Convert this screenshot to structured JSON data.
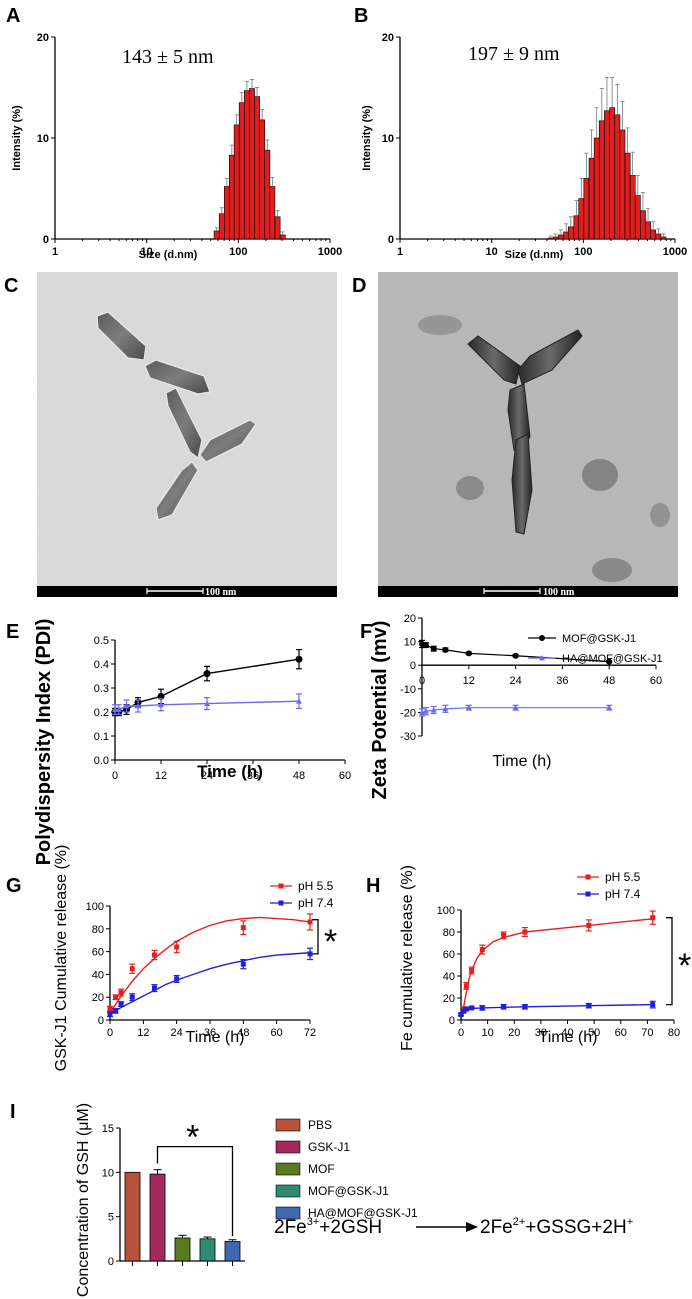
{
  "panels": {
    "A": "A",
    "B": "B",
    "C": "C",
    "D": "D",
    "E": "E",
    "F": "F",
    "G": "G",
    "H": "H",
    "I": "I"
  },
  "dls_axis": {
    "xlabel": "Size (d.nm)",
    "ylabel": "Intensity (%)"
  },
  "tem": {
    "scale_label": "100 nm"
  },
  "equation": {
    "lhs": "2Fe",
    "lhs_sup": "3+",
    "mid": "+2GSH",
    "rhs": "2Fe",
    "rhs_sup": "2+",
    "tail": "+GSSG+2H",
    "tail_sup": "+"
  },
  "colors": {
    "bar_red": "#dd1f1f",
    "black": "#000000",
    "blue": "#1f1fe0",
    "lightblue": "#6b6bf0",
    "pbs": "#b8523a",
    "gsk": "#a3285c",
    "mof": "#5a7a22",
    "mofgsk": "#2e8a70",
    "hamof": "#3f68b0"
  },
  "chart_data": [
    {
      "id": "A",
      "type": "bar",
      "title": "143 ± 5 nm",
      "xlabel": "Size (d.nm)",
      "ylabel": "Intensity (%)",
      "xscale": "log",
      "xlim": [
        1,
        1000
      ],
      "ylim": [
        0,
        20
      ],
      "xticks": [
        "1",
        "10",
        "100",
        "1000"
      ],
      "yticks": [
        "0",
        "10",
        "20"
      ],
      "x": [
        58,
        66,
        75,
        85,
        96,
        109,
        124,
        141,
        160,
        182,
        207,
        235,
        268,
        305
      ],
      "values": [
        0.8,
        2.5,
        5.2,
        8.3,
        11.3,
        13.5,
        14.7,
        14.9,
        14.1,
        11.8,
        8.8,
        5.2,
        2.2,
        0.4
      ],
      "errors": [
        0.3,
        0.6,
        0.8,
        1.0,
        1.0,
        1.0,
        0.9,
        0.9,
        0.9,
        1.0,
        1.0,
        0.9,
        0.6,
        0.3
      ]
    },
    {
      "id": "B",
      "type": "bar",
      "title": "197 ± 9 nm",
      "xlabel": "Size (d.nm)",
      "ylabel": "Intensity (%)",
      "xscale": "log",
      "xlim": [
        1,
        1000
      ],
      "ylim": [
        0,
        20
      ],
      "xticks": [
        "1",
        "10",
        "100",
        "1000"
      ],
      "yticks": [
        "0",
        "10",
        "20"
      ],
      "x": [
        44,
        50,
        57,
        65,
        73,
        84,
        95,
        108,
        123,
        140,
        159,
        181,
        206,
        235,
        267,
        304,
        345,
        393,
        447,
        508,
        578,
        658,
        749
      ],
      "values": [
        0.1,
        0.2,
        0.4,
        0.7,
        1.2,
        2.3,
        4.0,
        6.0,
        8.0,
        10.0,
        11.7,
        12.7,
        13.0,
        12.3,
        10.8,
        8.5,
        6.3,
        4.3,
        2.8,
        1.7,
        0.9,
        0.5,
        0.2
      ],
      "errors": [
        0.2,
        0.3,
        0.5,
        0.8,
        1.0,
        1.5,
        2.0,
        2.5,
        2.8,
        3.0,
        3.2,
        3.3,
        3.0,
        3.0,
        2.8,
        2.5,
        2.3,
        2.0,
        1.8,
        1.3,
        0.8,
        0.5,
        0.3
      ]
    },
    {
      "id": "E",
      "type": "line",
      "xlabel": "Time (h)",
      "ylabel": "Polydispersity Index (PDI)",
      "xlim": [
        0,
        60
      ],
      "ylim": [
        0,
        0.5
      ],
      "xticks": [
        "0",
        "12",
        "24",
        "36",
        "48",
        "60"
      ],
      "yticks": [
        "0.0",
        "0.1",
        "0.2",
        "0.3",
        "0.4",
        "0.5"
      ],
      "series": [
        {
          "x": [
            0,
            1,
            3,
            6,
            12,
            24,
            48
          ],
          "values": [
            0.2,
            0.2,
            0.21,
            0.24,
            0.265,
            0.36,
            0.42
          ],
          "errors": [
            0.015,
            0.015,
            0.02,
            0.02,
            0.03,
            0.03,
            0.04
          ],
          "color": "#000000",
          "marker": "circle"
        },
        {
          "x": [
            0,
            1,
            3,
            6,
            12,
            24,
            48
          ],
          "values": [
            0.21,
            0.21,
            0.225,
            0.225,
            0.23,
            0.235,
            0.245
          ],
          "errors": [
            0.02,
            0.02,
            0.025,
            0.025,
            0.025,
            0.025,
            0.03
          ],
          "color": "#6b6bf0",
          "marker": "triangle"
        }
      ]
    },
    {
      "id": "F",
      "type": "line",
      "xlabel": "Time (h)",
      "ylabel": "Zeta Potential (mv)",
      "xlim": [
        0,
        60
      ],
      "ylim": [
        -30,
        20
      ],
      "xticks": [
        "0",
        "12",
        "24",
        "36",
        "48",
        "60"
      ],
      "yticks": [
        "-30",
        "-20",
        "-10",
        "0",
        "10",
        "20"
      ],
      "series": [
        {
          "name": "MOF@GSK-J1",
          "x": [
            0,
            1,
            3,
            6,
            12,
            24,
            48
          ],
          "values": [
            9,
            8.5,
            7,
            6.5,
            5,
            4,
            1.5
          ],
          "errors": [
            1.5,
            1,
            1,
            0.8,
            0.5,
            0.5,
            0.5
          ],
          "color": "#000000",
          "marker": "circle"
        },
        {
          "name": "HA@MOF@GSK-J1",
          "x": [
            0,
            1,
            3,
            6,
            12,
            24,
            48
          ],
          "values": [
            -20,
            -19.5,
            -19,
            -18.5,
            -18,
            -18,
            -18
          ],
          "errors": [
            1.5,
            1.5,
            1.5,
            1.5,
            1,
            1,
            1
          ],
          "color": "#6b6bf0",
          "marker": "triangle"
        }
      ]
    },
    {
      "id": "G",
      "type": "scatter",
      "xlabel": "Time (h)",
      "ylabel": "GSK-J1 Cumulative release (%)",
      "xlim": [
        0,
        72
      ],
      "ylim": [
        0,
        100
      ],
      "xticks": [
        "0",
        "12",
        "24",
        "36",
        "48",
        "60",
        "72"
      ],
      "yticks": [
        "0",
        "20",
        "40",
        "60",
        "80",
        "100"
      ],
      "annotation": "*",
      "series": [
        {
          "name": "pH 5.5",
          "x": [
            0,
            2,
            4,
            8,
            16,
            24,
            48,
            72
          ],
          "values": [
            10,
            20,
            24,
            45,
            57,
            64,
            81,
            86
          ],
          "errors": [
            2,
            2,
            3,
            4,
            4,
            5,
            6,
            7
          ],
          "color": "#e81e1e",
          "fit_x": [
            0,
            4,
            8,
            12,
            16,
            20,
            24,
            30,
            36,
            42,
            48,
            54,
            60,
            66,
            72
          ],
          "fit_y": [
            6,
            21,
            34,
            45,
            54,
            62,
            69,
            77,
            83,
            87,
            89,
            90,
            89,
            88,
            86
          ]
        },
        {
          "name": "pH 7.4",
          "x": [
            0,
            2,
            4,
            8,
            16,
            24,
            48,
            72
          ],
          "values": [
            5,
            8,
            14,
            20,
            28,
            36,
            49,
            58
          ],
          "errors": [
            2,
            2,
            2,
            3,
            3,
            3,
            4,
            5
          ],
          "color": "#1f1fe0",
          "fit_x": [
            0,
            4,
            8,
            12,
            16,
            20,
            24,
            30,
            36,
            42,
            48,
            54,
            60,
            66,
            72
          ],
          "fit_y": [
            5,
            11,
            16,
            21,
            26,
            31,
            35,
            40,
            45,
            49,
            52,
            55,
            57,
            58,
            59
          ]
        }
      ]
    },
    {
      "id": "H",
      "type": "scatter",
      "xlabel": "Time (h)",
      "ylabel": "Fe cumulative release (%)",
      "xlim": [
        0,
        80
      ],
      "ylim": [
        0,
        100
      ],
      "xticks": [
        "0",
        "10",
        "20",
        "30",
        "40",
        "50",
        "60",
        "70",
        "80"
      ],
      "yticks": [
        "0",
        "20",
        "40",
        "60",
        "80",
        "100"
      ],
      "annotation": "*",
      "series": [
        {
          "name": "pH 5.5",
          "x": [
            0,
            1,
            2,
            4,
            8,
            16,
            24,
            48,
            72
          ],
          "values": [
            5,
            10,
            31,
            45,
            64,
            77,
            80,
            86,
            93
          ],
          "errors": [
            1,
            2,
            3,
            3,
            4,
            3,
            4,
            5,
            6
          ],
          "color": "#e81e1e",
          "fit_x": [
            0,
            1,
            2,
            3,
            4,
            6,
            8,
            12,
            16,
            24,
            36,
            48,
            60,
            72
          ],
          "fit_y": [
            5,
            12,
            25,
            37,
            45,
            56,
            63,
            71,
            75,
            80,
            83,
            86,
            89,
            92
          ]
        },
        {
          "name": "pH 7.4",
          "x": [
            0,
            1,
            2,
            4,
            8,
            16,
            24,
            48,
            72
          ],
          "values": [
            5,
            8,
            10,
            11,
            11,
            12,
            12,
            13,
            14
          ],
          "errors": [
            1,
            1,
            1,
            1,
            2,
            2,
            2,
            2,
            3
          ],
          "color": "#1f1fe0",
          "fit_x": [
            0,
            1,
            2,
            4,
            8,
            16,
            24,
            48,
            72
          ],
          "fit_y": [
            5,
            8,
            10,
            10.5,
            11,
            11.5,
            12,
            13,
            14
          ]
        }
      ]
    },
    {
      "id": "I",
      "type": "bar",
      "ylabel": "Concentration of GSH (μM)",
      "ylim": [
        0,
        15
      ],
      "yticks": [
        "0",
        "5",
        "10",
        "15"
      ],
      "annotation": "*",
      "categories": [
        "PBS",
        "GSK-J1",
        "MOF",
        "MOF@GSK-J1",
        "HA@MOF@GSK-J1"
      ],
      "values": [
        10,
        9.8,
        2.6,
        2.5,
        2.2
      ],
      "errors": [
        0,
        0.5,
        0.3,
        0.2,
        0.2
      ],
      "colors": [
        "#b8523a",
        "#a3285c",
        "#5a7a22",
        "#2e8a70",
        "#3f68b0"
      ]
    }
  ]
}
